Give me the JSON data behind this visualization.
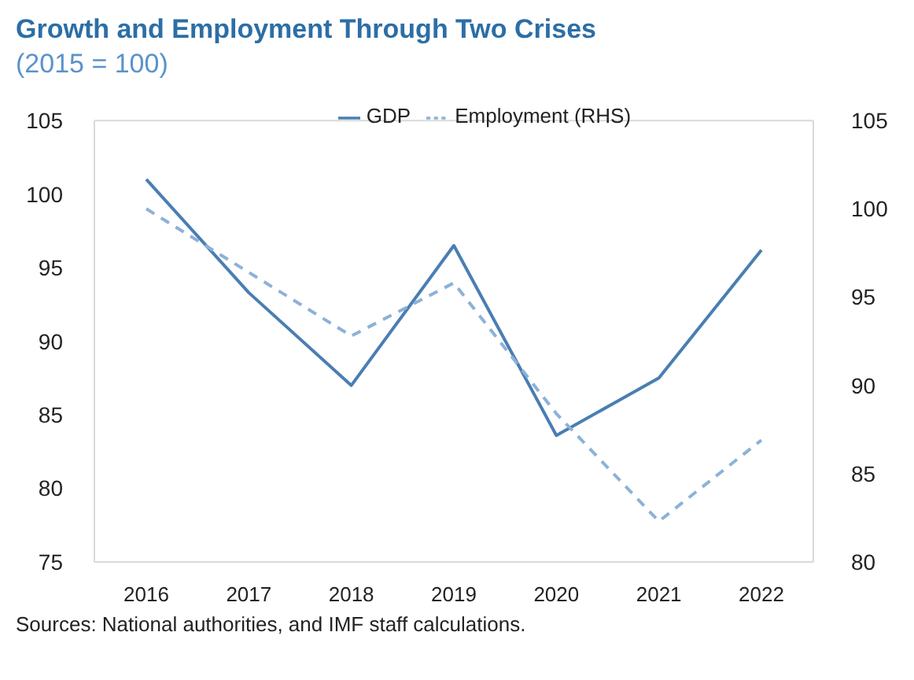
{
  "chart_data": {
    "type": "line",
    "title": "Growth and Employment Through Two Crises",
    "subtitle": "(2015 = 100)",
    "categories": [
      "2016",
      "2017",
      "2018",
      "2019",
      "2020",
      "2021",
      "2022"
    ],
    "series": [
      {
        "name": "GDP",
        "color": "#4a7eb3",
        "values": [
          101.0,
          93.3,
          87.0,
          96.5,
          83.6,
          87.5,
          96.2
        ],
        "line_style": "solid"
      },
      {
        "name": "Employment (RHS)",
        "color": "#8db1d8",
        "values": [
          100.0,
          96.4,
          92.8,
          95.8,
          88.4,
          82.3,
          86.9
        ],
        "axis": "y2",
        "line_style": "dashed"
      }
    ],
    "ylim": [
      75,
      105
    ],
    "yticks": [
      75,
      80,
      85,
      90,
      95,
      100,
      105
    ],
    "y2lim": [
      80,
      105
    ],
    "y2ticks": [
      80,
      85,
      90,
      95,
      100,
      105
    ],
    "grid": false,
    "legend": "top",
    "marker": "none",
    "annotations": [
      "Sources: National authorities, and IMF staff calculations."
    ]
  }
}
